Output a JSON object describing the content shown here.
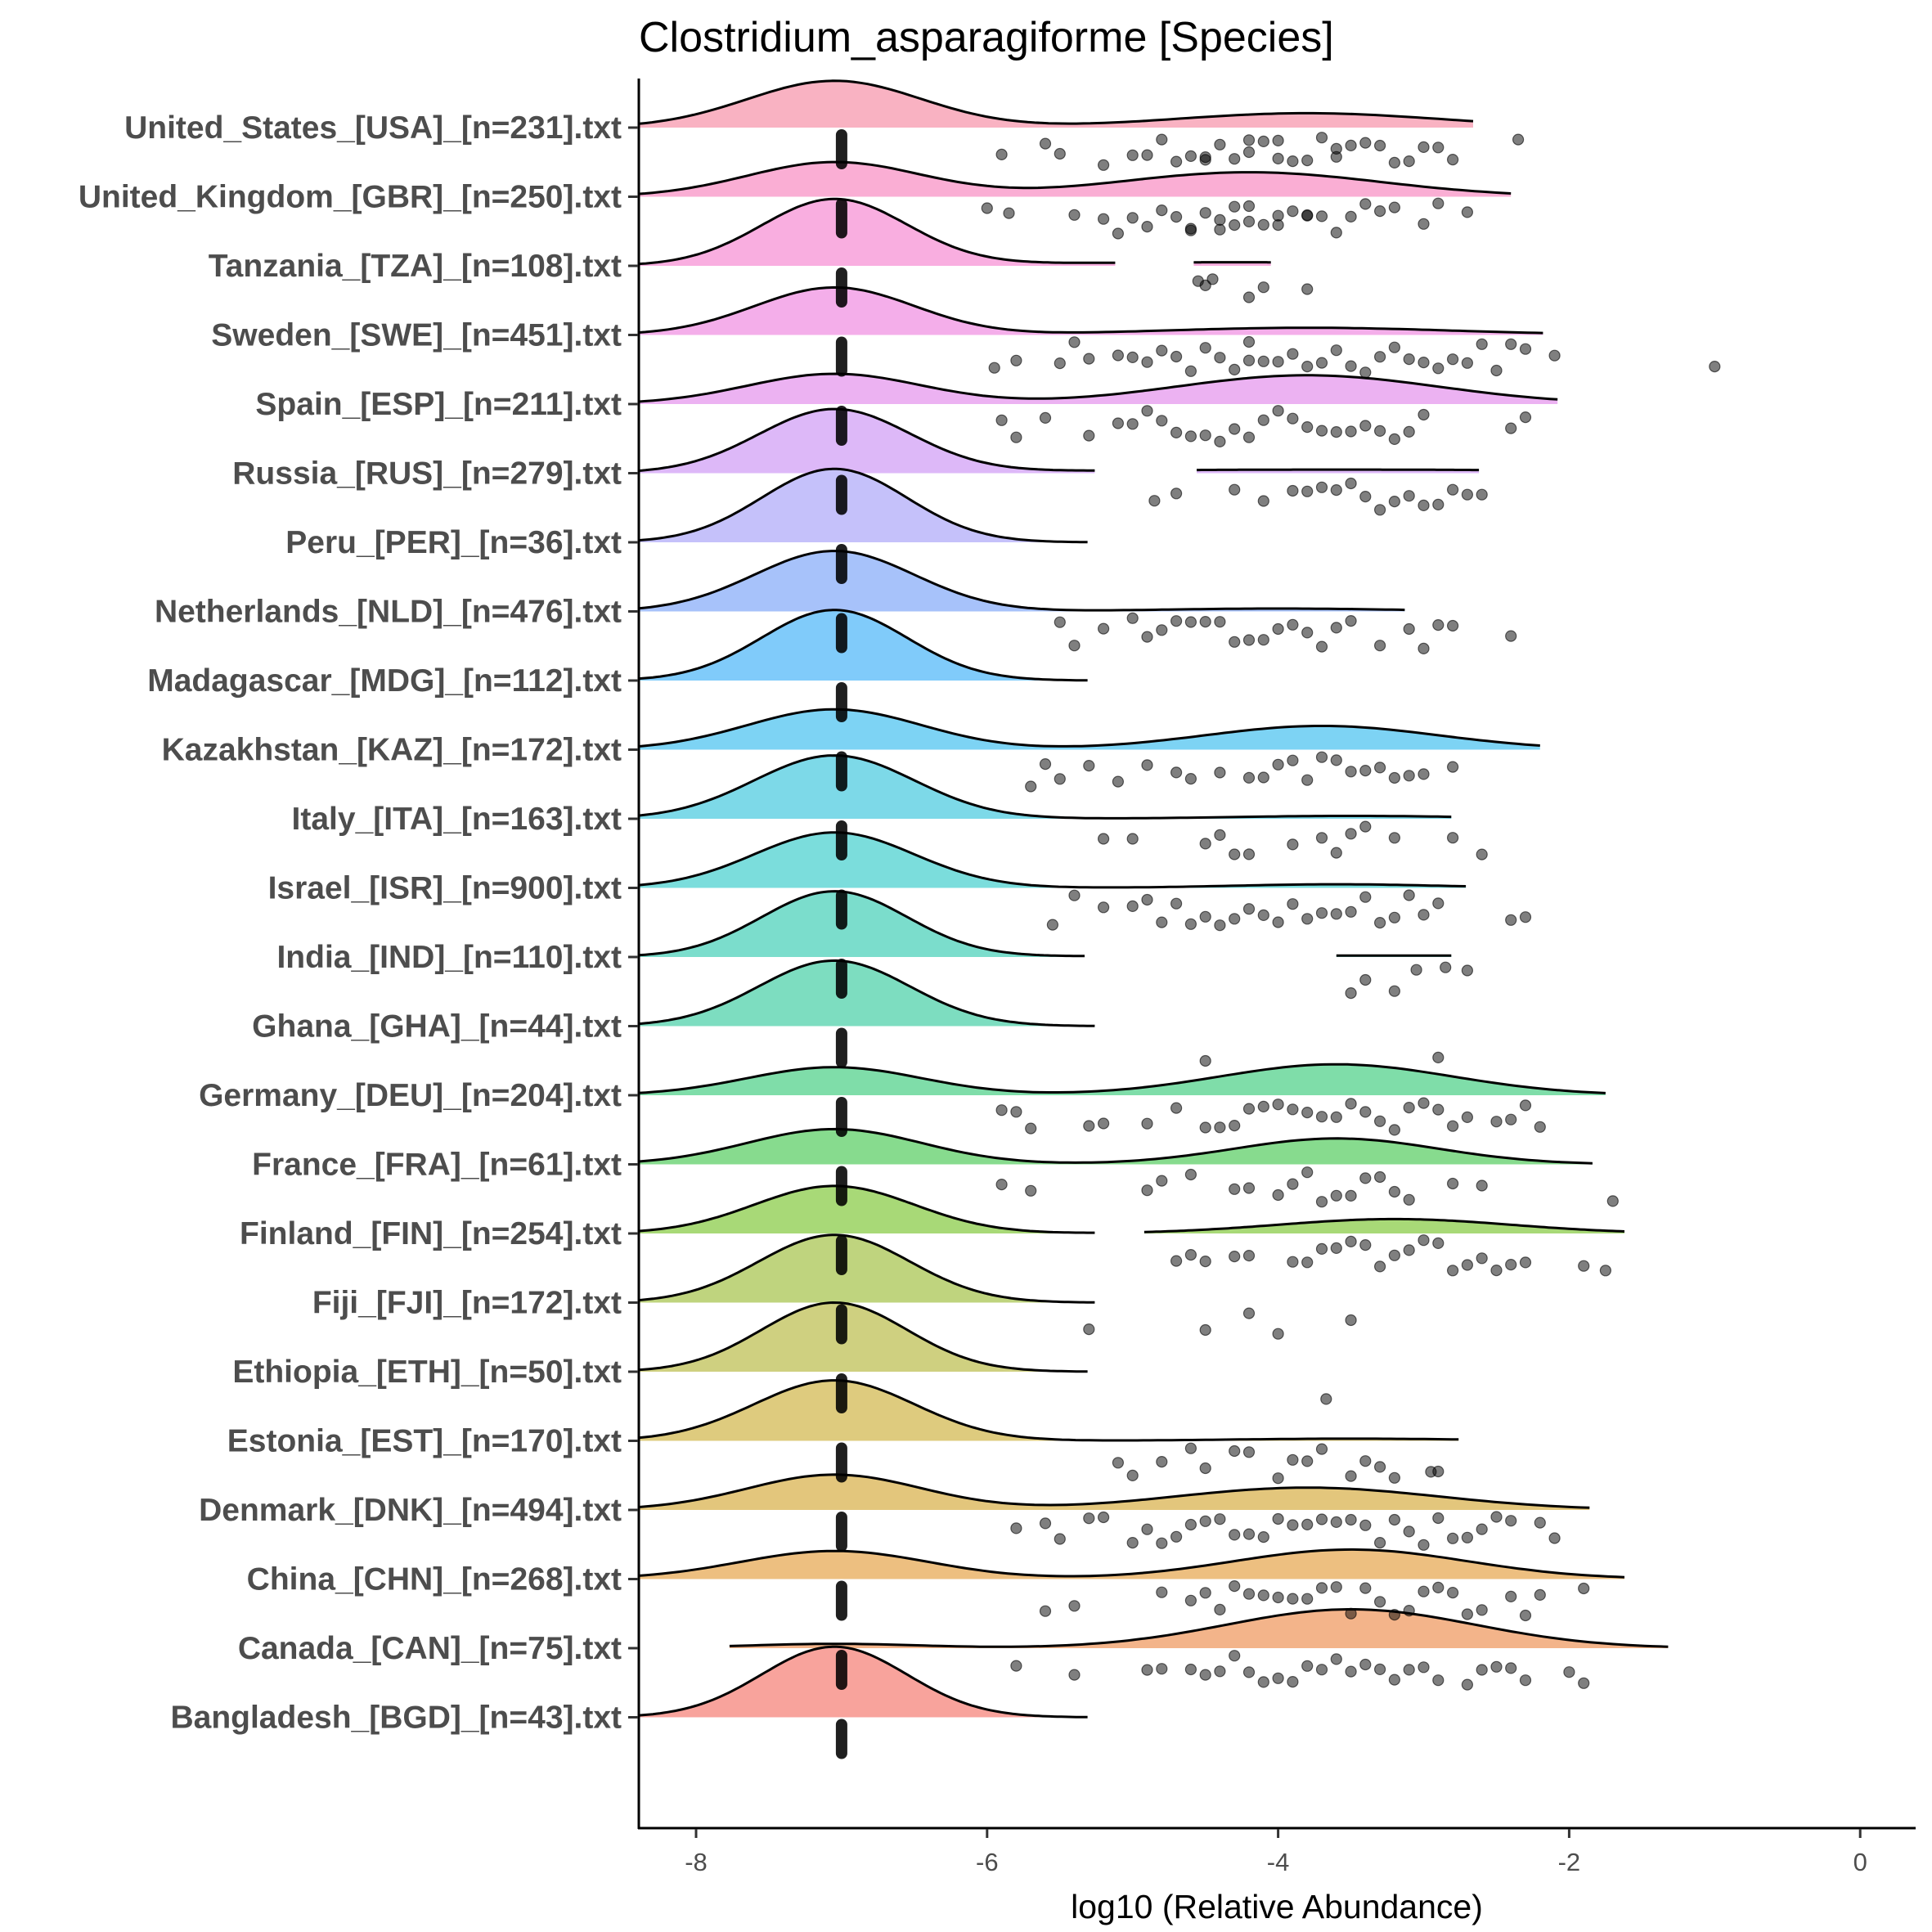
{
  "chart_data": {
    "type": "raincloud",
    "title": "Clostridium_asparagiforme [Species]",
    "xlabel": "log10 (Relative Abundance)",
    "ylabel": "",
    "xlim": [
      -8.4,
      0.4
    ],
    "xticks": [
      -8,
      -6,
      -4,
      -2,
      0
    ],
    "xtick_labels": [
      "-8",
      "-6",
      "-4",
      "-2",
      "0"
    ],
    "grid": false,
    "legend": "none",
    "zero_value": -7,
    "groups": [
      {
        "label": "United_States_[USA]_[n=231].txt",
        "color": "#F9B2C2",
        "main_h": 0.65,
        "main_sd": 0.6,
        "segments": [
          [
            -8.4,
            -2.66
          ]
        ],
        "bumps": [
          [
            -3.8,
            0.9,
            0.2
          ]
        ],
        "points": [
          -5.9,
          -5.6,
          -5.5,
          -5.2,
          -5.0,
          -4.9,
          -4.8,
          -4.7,
          -4.6,
          -4.5,
          -4.5,
          -4.4,
          -4.3,
          -4.2,
          -4.2,
          -4.1,
          -4.0,
          -4.0,
          -3.9,
          -3.8,
          -3.7,
          -3.6,
          -3.6,
          -3.5,
          -3.4,
          -3.3,
          -3.2,
          -3.1,
          -3.0,
          -2.9,
          -2.8,
          -2.35
        ]
      },
      {
        "label": "United_Kingdom_[GBR]_[n=250].txt",
        "color": "#FAAED4",
        "main_h": 0.48,
        "main_sd": 0.6,
        "segments": [
          [
            -8.4,
            -2.4
          ]
        ],
        "bumps": [
          [
            -4.2,
            0.9,
            0.34
          ]
        ],
        "points": [
          -6.0,
          -5.85,
          -5.4,
          -5.2,
          -5.1,
          -5.0,
          -4.9,
          -4.8,
          -4.7,
          -4.6,
          -4.6,
          -4.5,
          -4.4,
          -4.4,
          -4.3,
          -4.3,
          -4.2,
          -4.2,
          -4.1,
          -4.0,
          -4.0,
          -3.9,
          -3.8,
          -3.8,
          -3.7,
          -3.6,
          -3.5,
          -3.4,
          -3.3,
          -3.2,
          -3.0,
          -2.9,
          -2.7
        ]
      },
      {
        "label": "Tanzania_[TZA]_[n=108].txt",
        "color": "#F9AEE0",
        "main_h": 0.92,
        "main_sd": 0.5,
        "segments": [
          [
            -8.4,
            -5.12
          ],
          [
            -4.58,
            -4.05
          ]
        ],
        "bumps": [
          [
            -4.3,
            1.5,
            0.05
          ]
        ],
        "points": [
          -4.55,
          -4.5,
          -4.45,
          -4.2,
          -4.1,
          -3.8
        ]
      },
      {
        "label": "Sweden_[SWE]_[n=451].txt",
        "color": "#F4AEEA",
        "main_h": 0.66,
        "main_sd": 0.55,
        "segments": [
          [
            -8.4,
            -2.18
          ]
        ],
        "bumps": [
          [
            -3.8,
            1.0,
            0.1
          ]
        ],
        "points": [
          -5.95,
          -5.8,
          -5.5,
          -5.4,
          -5.3,
          -5.1,
          -5.0,
          -4.9,
          -4.8,
          -4.7,
          -4.6,
          -4.5,
          -4.4,
          -4.3,
          -4.2,
          -4.2,
          -4.1,
          -4.0,
          -3.9,
          -3.8,
          -3.7,
          -3.6,
          -3.5,
          -3.4,
          -3.3,
          -3.2,
          -3.1,
          -3.0,
          -2.9,
          -2.8,
          -2.7,
          -2.6,
          -2.5,
          -2.4,
          -2.3,
          -2.1,
          -1.0
        ]
      },
      {
        "label": "Spain_[ESP]_[n=211].txt",
        "color": "#ECB2F2",
        "main_h": 0.42,
        "main_sd": 0.6,
        "segments": [
          [
            -8.4,
            -2.08
          ]
        ],
        "bumps": [
          [
            -3.8,
            0.9,
            0.4
          ]
        ],
        "points": [
          -5.9,
          -5.8,
          -5.6,
          -5.3,
          -5.1,
          -5.0,
          -4.9,
          -4.8,
          -4.7,
          -4.6,
          -4.5,
          -4.4,
          -4.3,
          -4.2,
          -4.1,
          -4.0,
          -3.9,
          -3.8,
          -3.7,
          -3.6,
          -3.5,
          -3.4,
          -3.3,
          -3.2,
          -3.1,
          -3.0,
          -2.4,
          -2.3
        ]
      },
      {
        "label": "Russia_[RUS]_[n=279].txt",
        "color": "#DDB8F8",
        "main_h": 0.88,
        "main_sd": 0.52,
        "segments": [
          [
            -8.4,
            -5.26
          ],
          [
            -4.56,
            -2.62
          ]
        ],
        "bumps": [
          [
            -3.6,
            2.0,
            0.05
          ]
        ],
        "points": [
          -4.85,
          -4.7,
          -4.3,
          -4.1,
          -3.9,
          -3.8,
          -3.7,
          -3.6,
          -3.5,
          -3.4,
          -3.3,
          -3.2,
          -3.1,
          -3.0,
          -2.9,
          -2.8,
          -2.7,
          -2.6
        ]
      },
      {
        "label": "Peru_[PER]_[n=36].txt",
        "color": "#C5C1FA",
        "main_h": 1.02,
        "main_sd": 0.5,
        "segments": [
          [
            -8.4,
            -5.31
          ]
        ],
        "bumps": [],
        "points": []
      },
      {
        "label": "Netherlands_[NLD]_[n=476].txt",
        "color": "#A7C2FA",
        "main_h": 0.84,
        "main_sd": 0.55,
        "segments": [
          [
            -8.4,
            -3.13
          ]
        ],
        "bumps": [
          [
            -4.0,
            0.8,
            0.04
          ]
        ],
        "points": [
          -5.5,
          -5.4,
          -5.2,
          -5.0,
          -4.9,
          -4.8,
          -4.7,
          -4.6,
          -4.5,
          -4.4,
          -4.3,
          -4.2,
          -4.1,
          -4.0,
          -3.9,
          -3.8,
          -3.7,
          -3.6,
          -3.5,
          -3.3,
          -3.1,
          -3.0,
          -2.9,
          -2.8,
          -2.4
        ]
      },
      {
        "label": "Madagascar_[MDG]_[n=112].txt",
        "color": "#80CBFA",
        "main_h": 0.98,
        "main_sd": 0.5,
        "segments": [
          [
            -8.4,
            -5.31
          ]
        ],
        "bumps": [],
        "points": []
      },
      {
        "label": "Kazakhstan_[KAZ]_[n=172].txt",
        "color": "#7DD3F4",
        "main_h": 0.56,
        "main_sd": 0.6,
        "segments": [
          [
            -8.4,
            -2.2
          ]
        ],
        "bumps": [
          [
            -3.7,
            0.8,
            0.33
          ]
        ],
        "points": [
          -5.7,
          -5.6,
          -5.5,
          -5.3,
          -5.1,
          -4.9,
          -4.7,
          -4.6,
          -4.4,
          -4.2,
          -4.1,
          -4.0,
          -3.9,
          -3.8,
          -3.7,
          -3.6,
          -3.5,
          -3.4,
          -3.3,
          -3.2,
          -3.1,
          -3.0,
          -2.8
        ]
      },
      {
        "label": "Italy_[ITA]_[n=163].txt",
        "color": "#7DD9E8",
        "main_h": 0.88,
        "main_sd": 0.55,
        "segments": [
          [
            -8.4,
            -2.81
          ]
        ],
        "bumps": [
          [
            -3.5,
            0.8,
            0.04
          ]
        ],
        "points": [
          -5.2,
          -5.0,
          -4.5,
          -4.4,
          -4.3,
          -4.2,
          -3.9,
          -3.7,
          -3.6,
          -3.5,
          -3.4,
          -3.2,
          -2.8,
          -2.6
        ]
      },
      {
        "label": "Israel_[ISR]_[n=900].txt",
        "color": "#7BDDDC",
        "main_h": 0.77,
        "main_sd": 0.55,
        "segments": [
          [
            -8.4,
            -2.71
          ]
        ],
        "bumps": [
          [
            -3.6,
            0.7,
            0.05
          ]
        ],
        "points": [
          -5.55,
          -5.4,
          -5.2,
          -5.0,
          -4.9,
          -4.8,
          -4.7,
          -4.6,
          -4.5,
          -4.4,
          -4.3,
          -4.2,
          -4.1,
          -4.0,
          -3.9,
          -3.8,
          -3.7,
          -3.6,
          -3.5,
          -3.4,
          -3.3,
          -3.2,
          -3.1,
          -3.0,
          -2.9,
          -2.4,
          -2.3
        ]
      },
      {
        "label": "India_[IND]_[n=110].txt",
        "color": "#7BDDCC",
        "main_h": 0.91,
        "main_sd": 0.5,
        "segments": [
          [
            -8.4,
            -5.33
          ],
          [
            -3.6,
            -2.81
          ]
        ],
        "bumps": [
          [
            -3.2,
            2.0,
            0.02
          ]
        ],
        "points": [
          -3.5,
          -3.4,
          -3.2,
          -3.05,
          -2.85,
          -2.7
        ]
      },
      {
        "label": "Ghana_[GHA]_[n=44].txt",
        "color": "#7DDDC0",
        "main_h": 0.91,
        "main_sd": 0.52,
        "segments": [
          [
            -8.4,
            -5.26
          ]
        ],
        "bumps": [],
        "points": [
          -4.5,
          -2.9
        ]
      },
      {
        "label": "Germany_[DEU]_[n=204].txt",
        "color": "#7FDDA9",
        "main_h": 0.39,
        "main_sd": 0.6,
        "segments": [
          [
            -8.4,
            -1.75
          ]
        ],
        "bumps": [
          [
            -3.6,
            0.8,
            0.43
          ]
        ],
        "points": [
          -5.9,
          -5.8,
          -5.7,
          -5.3,
          -5.2,
          -4.9,
          -4.7,
          -4.5,
          -4.4,
          -4.3,
          -4.2,
          -4.1,
          -4.0,
          -3.9,
          -3.8,
          -3.7,
          -3.6,
          -3.5,
          -3.4,
          -3.3,
          -3.2,
          -3.1,
          -3.0,
          -2.9,
          -2.8,
          -2.7,
          -2.5,
          -2.4,
          -2.3,
          -2.2
        ]
      },
      {
        "label": "France_[FRA]_[n=61].txt",
        "color": "#87DB8E",
        "main_h": 0.49,
        "main_sd": 0.6,
        "segments": [
          [
            -8.4,
            -1.84
          ]
        ],
        "bumps": [
          [
            -3.6,
            0.7,
            0.36
          ]
        ],
        "points": [
          -5.9,
          -5.7,
          -4.9,
          -4.8,
          -4.6,
          -4.3,
          -4.2,
          -4.0,
          -3.9,
          -3.8,
          -3.7,
          -3.6,
          -3.5,
          -3.4,
          -3.3,
          -3.2,
          -3.1,
          -2.8,
          -2.6,
          -1.7
        ]
      },
      {
        "label": "Finland_[FIN]_[n=254].txt",
        "color": "#A8D977",
        "main_h": 0.66,
        "main_sd": 0.55,
        "segments": [
          [
            -8.4,
            -5.26
          ],
          [
            -4.92,
            -1.62
          ]
        ],
        "bumps": [
          [
            -3.2,
            0.8,
            0.2
          ]
        ],
        "points": [
          -4.7,
          -4.6,
          -4.5,
          -4.3,
          -4.2,
          -3.9,
          -3.8,
          -3.7,
          -3.6,
          -3.5,
          -3.4,
          -3.3,
          -3.2,
          -3.1,
          -3.0,
          -2.9,
          -2.8,
          -2.7,
          -2.6,
          -2.5,
          -2.4,
          -2.3,
          -1.9,
          -1.75
        ]
      },
      {
        "label": "Fiji_[FJI]_[n=172].txt",
        "color": "#BFD47E",
        "main_h": 0.94,
        "main_sd": 0.52,
        "segments": [
          [
            -8.4,
            -5.26
          ]
        ],
        "bumps": [],
        "points": [
          -5.3,
          -4.5,
          -4.2,
          -4.0,
          -3.5
        ]
      },
      {
        "label": "Ethiopia_[ETH]_[n=50].txt",
        "color": "#CFD080",
        "main_h": 0.96,
        "main_sd": 0.5,
        "segments": [
          [
            -8.4,
            -5.31
          ]
        ],
        "bumps": [],
        "points": [
          -3.67
        ]
      },
      {
        "label": "Estonia_[EST]_[n=170].txt",
        "color": "#DECB7E",
        "main_h": 0.84,
        "main_sd": 0.55,
        "segments": [
          [
            -8.4,
            -2.76
          ]
        ],
        "bumps": [
          [
            -3.5,
            0.8,
            0.03
          ]
        ],
        "points": [
          -5.1,
          -5.0,
          -4.8,
          -4.6,
          -4.5,
          -4.3,
          -4.2,
          -4.0,
          -3.9,
          -3.8,
          -3.7,
          -3.5,
          -3.4,
          -3.3,
          -3.2,
          -2.95,
          -2.9
        ]
      },
      {
        "label": "Denmark_[DNK]_[n=494].txt",
        "color": "#E3C67C",
        "main_h": 0.49,
        "main_sd": 0.6,
        "segments": [
          [
            -8.4,
            -1.86
          ]
        ],
        "bumps": [
          [
            -3.8,
            0.9,
            0.31
          ]
        ],
        "points": [
          -5.8,
          -5.6,
          -5.5,
          -5.3,
          -5.2,
          -5.0,
          -4.9,
          -4.8,
          -4.7,
          -4.6,
          -4.5,
          -4.4,
          -4.3,
          -4.2,
          -4.1,
          -4.0,
          -3.9,
          -3.8,
          -3.7,
          -3.6,
          -3.5,
          -3.4,
          -3.3,
          -3.2,
          -3.1,
          -3.0,
          -2.9,
          -2.8,
          -2.7,
          -2.6,
          -2.5,
          -2.4,
          -2.2,
          -2.1
        ]
      },
      {
        "label": "China_[CHN]_[n=268].txt",
        "color": "#EDBF80",
        "main_h": 0.39,
        "main_sd": 0.65,
        "segments": [
          [
            -8.4,
            -1.62
          ]
        ],
        "bumps": [
          [
            -3.5,
            0.8,
            0.41
          ]
        ],
        "points": [
          -5.6,
          -5.4,
          -4.8,
          -4.6,
          -4.5,
          -4.4,
          -4.3,
          -4.2,
          -4.1,
          -4.0,
          -3.9,
          -3.8,
          -3.7,
          -3.6,
          -3.5,
          -3.4,
          -3.3,
          -3.2,
          -3.1,
          -3.0,
          -2.9,
          -2.8,
          -2.7,
          -2.6,
          -2.4,
          -2.3,
          -2.2,
          -1.9
        ]
      },
      {
        "label": "Canada_[CAN]_[n=75].txt",
        "color": "#F3B48A",
        "main_h": 0.06,
        "main_sd": 0.6,
        "segments": [
          [
            -7.77,
            -1.32
          ]
        ],
        "bumps": [
          [
            -3.5,
            0.85,
            0.54
          ]
        ],
        "points": [
          -5.8,
          -5.4,
          -4.9,
          -4.8,
          -4.6,
          -4.5,
          -4.4,
          -4.3,
          -4.2,
          -4.1,
          -4.0,
          -3.9,
          -3.8,
          -3.7,
          -3.6,
          -3.5,
          -3.4,
          -3.3,
          -3.2,
          -3.1,
          -3.0,
          -2.9,
          -2.7,
          -2.6,
          -2.5,
          -2.4,
          -2.3,
          -2.0,
          -1.9
        ]
      },
      {
        "label": "Bangladesh_[BGD]_[n=43].txt",
        "color": "#F8A39C",
        "main_h": 0.98,
        "main_sd": 0.5,
        "segments": [
          [
            -8.4,
            -5.31
          ]
        ],
        "bumps": [],
        "points": []
      }
    ]
  }
}
